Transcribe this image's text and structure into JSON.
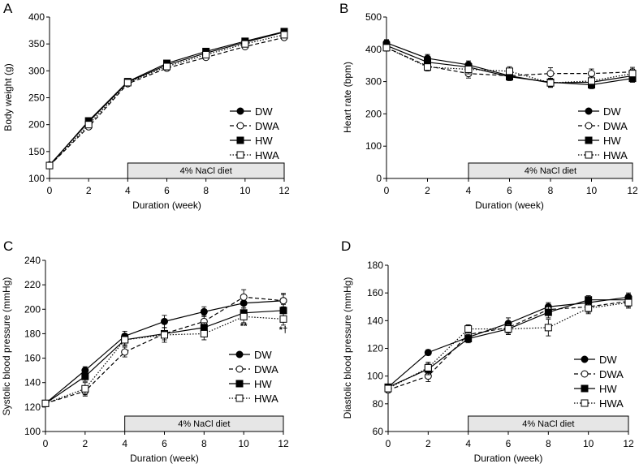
{
  "figure": {
    "aria_label": "Four-panel line charts of body weight, heart rate and blood pressure over 12 weeks"
  },
  "chart_data": [
    {
      "panel": "A",
      "type": "line",
      "ylabel": "Body weight (g)",
      "xlabel": "Duration (week)",
      "xlim": [
        0,
        12
      ],
      "ylim": [
        100,
        400
      ],
      "xticks": [
        "0",
        "2",
        "4",
        "6",
        "8",
        "10",
        "12"
      ],
      "yticks": [
        "100",
        "150",
        "200",
        "250",
        "300",
        "350",
        "400"
      ],
      "diet_label": "4% NaCl diet",
      "diet_range": [
        4,
        12
      ],
      "legend_position": "right",
      "x": [
        0,
        2,
        4,
        6,
        8,
        10,
        12
      ],
      "series": [
        {
          "name": "DW",
          "values": [
            125,
            205,
            279,
            311,
            333,
            353,
            372
          ],
          "errors": [
            2,
            4,
            4,
            4,
            4,
            4,
            4
          ]
        },
        {
          "name": "DWA",
          "values": [
            124,
            196,
            276,
            305,
            325,
            345,
            362
          ],
          "errors": [
            2,
            4,
            4,
            4,
            4,
            4,
            4
          ]
        },
        {
          "name": "HW",
          "values": [
            124,
            207,
            280,
            314,
            336,
            355,
            373
          ],
          "errors": [
            2,
            4,
            4,
            4,
            4,
            4,
            4
          ]
        },
        {
          "name": "HWA",
          "values": [
            124,
            200,
            278,
            308,
            330,
            350,
            367
          ],
          "errors": [
            2,
            4,
            4,
            4,
            4,
            4,
            4
          ]
        }
      ],
      "annotations": []
    },
    {
      "panel": "B",
      "type": "line",
      "ylabel": "Heart rate (bpm)",
      "xlabel": "Duration (week)",
      "xlim": [
        0,
        12
      ],
      "ylim": [
        0,
        500
      ],
      "xticks": [
        "0",
        "2",
        "4",
        "6",
        "8",
        "10",
        "12"
      ],
      "yticks": [
        "0",
        "100",
        "200",
        "300",
        "400",
        "500"
      ],
      "diet_label": "4% NaCl diet",
      "diet_range": [
        4,
        12
      ],
      "legend_position": "right",
      "x": [
        0,
        2,
        4,
        6,
        8,
        10,
        12
      ],
      "series": [
        {
          "name": "DW",
          "values": [
            420,
            372,
            352,
            318,
            296,
            298,
            318
          ],
          "errors": [
            10,
            12,
            12,
            12,
            12,
            12,
            12
          ]
        },
        {
          "name": "DWA",
          "values": [
            405,
            348,
            325,
            318,
            325,
            325,
            330
          ],
          "errors": [
            10,
            12,
            14,
            14,
            18,
            14,
            14
          ]
        },
        {
          "name": "HW",
          "values": [
            412,
            360,
            345,
            315,
            298,
            290,
            310
          ],
          "errors": [
            10,
            12,
            12,
            12,
            12,
            12,
            12
          ]
        },
        {
          "name": "HWA",
          "values": [
            405,
            345,
            338,
            332,
            296,
            302,
            325
          ],
          "errors": [
            10,
            12,
            14,
            14,
            14,
            14,
            14
          ]
        }
      ],
      "annotations": []
    },
    {
      "panel": "C",
      "type": "line",
      "ylabel": "Systolic blood pressure (mmHg)",
      "xlabel": "Duration (week)",
      "xlim": [
        0,
        12
      ],
      "ylim": [
        100,
        240
      ],
      "xticks": [
        "0",
        "2",
        "4",
        "6",
        "8",
        "10",
        "12"
      ],
      "yticks": [
        "100",
        "120",
        "140",
        "160",
        "180",
        "200",
        "220",
        "240"
      ],
      "diet_label": "4% NaCl diet",
      "diet_range": [
        4,
        12
      ],
      "legend_position": "right",
      "x": [
        0,
        2,
        4,
        6,
        8,
        10,
        12
      ],
      "series": [
        {
          "name": "DW",
          "values": [
            123,
            150,
            178,
            190,
            198,
            205,
            207
          ],
          "errors": [
            2,
            3,
            4,
            5,
            4,
            4,
            5
          ]
        },
        {
          "name": "DWA",
          "values": [
            123,
            133,
            165,
            180,
            190,
            210,
            207
          ],
          "errors": [
            2,
            4,
            4,
            5,
            5,
            6,
            6
          ]
        },
        {
          "name": "HW",
          "values": [
            123,
            145,
            175,
            180,
            185,
            197,
            199
          ],
          "errors": [
            2,
            4,
            4,
            5,
            4,
            4,
            5
          ]
        },
        {
          "name": "HWA",
          "values": [
            123,
            135,
            175,
            179,
            180,
            194,
            192
          ],
          "errors": [
            2,
            5,
            5,
            6,
            5,
            5,
            5
          ]
        }
      ],
      "annotations": [
        {
          "text": "**",
          "x": 10,
          "y": 184
        },
        {
          "text": "*†",
          "x": 12,
          "y": 181
        }
      ]
    },
    {
      "panel": "D",
      "type": "line",
      "ylabel": "Diastolic blood pressure (mmHg)",
      "xlabel": "Duration (week)",
      "xlim": [
        0,
        12
      ],
      "ylim": [
        60,
        180
      ],
      "xticks": [
        "0",
        "2",
        "4",
        "6",
        "8",
        "10",
        "12"
      ],
      "yticks": [
        "60",
        "80",
        "100",
        "120",
        "140",
        "160",
        "180"
      ],
      "diet_label": "4% NaCl diet",
      "diet_range": [
        4,
        12
      ],
      "legend_position": "right",
      "x": [
        0,
        2,
        4,
        6,
        8,
        10,
        12
      ],
      "series": [
        {
          "name": "DW",
          "values": [
            92,
            117,
            128,
            138,
            150,
            153,
            157
          ],
          "errors": [
            2,
            2,
            3,
            4,
            3,
            3,
            3
          ]
        },
        {
          "name": "DWA",
          "values": [
            90,
            100,
            130,
            135,
            148,
            150,
            154
          ],
          "errors": [
            2,
            4,
            4,
            4,
            4,
            4,
            4
          ]
        },
        {
          "name": "HW",
          "values": [
            92,
            105,
            127,
            134,
            146,
            155,
            155
          ],
          "errors": [
            2,
            4,
            3,
            4,
            4,
            3,
            4
          ]
        },
        {
          "name": "HWA",
          "values": [
            91,
            106,
            134,
            134,
            135,
            149,
            153
          ],
          "errors": [
            2,
            4,
            3,
            4,
            6,
            4,
            4
          ]
        }
      ],
      "annotations": []
    }
  ],
  "series_styles": {
    "DW": {
      "marker": "filled-circle",
      "line": "solid",
      "color": "#000000"
    },
    "DWA": {
      "marker": "open-circle",
      "line": "dashed",
      "color": "#000000"
    },
    "HW": {
      "marker": "filled-square",
      "line": "solid",
      "color": "#000000"
    },
    "HWA": {
      "marker": "open-square",
      "line": "dotted",
      "color": "#000000"
    }
  },
  "colors": {
    "axis": "#000000",
    "diet_fill": "#e6e6e6",
    "background": "#ffffff"
  }
}
